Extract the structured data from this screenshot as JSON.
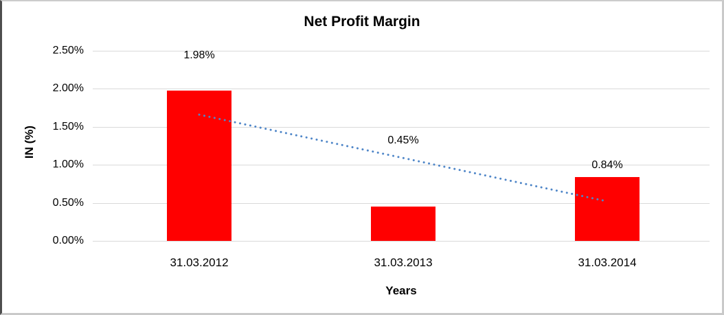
{
  "chart_data": {
    "type": "bar",
    "title": "Net Profit Margin",
    "xlabel": "Years",
    "ylabel": "IN (%)",
    "categories": [
      "31.03.2012",
      "31.03.2013",
      "31.03.2014"
    ],
    "values": [
      1.98,
      0.45,
      0.84
    ],
    "data_labels": [
      "1.98%",
      "0.45%",
      "0.84%"
    ],
    "y_ticks": [
      {
        "label": "2.50%",
        "value": 2.5
      },
      {
        "label": "2.00%",
        "value": 2.0
      },
      {
        "label": "1.50%",
        "value": 1.5
      },
      {
        "label": "1.00%",
        "value": 1.0
      },
      {
        "label": "0.50%",
        "value": 0.5
      },
      {
        "label": "0.00%",
        "value": 0.0
      }
    ],
    "ylim": [
      0,
      2.5
    ],
    "grid": true,
    "legend": "none",
    "colors": {
      "bar": "#FF0000",
      "gridline": "#D9D9D9",
      "trendline": "#4F86C8",
      "text": "#000000"
    },
    "trendline": {
      "type": "linear",
      "style": "dotted",
      "start_value_pct": 1.66,
      "end_value_pct": 0.52
    }
  }
}
